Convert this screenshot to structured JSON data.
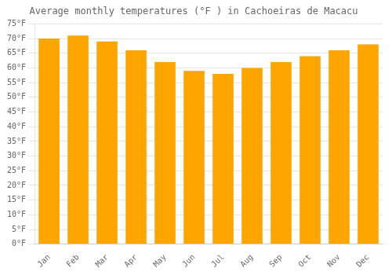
{
  "chart_data": {
    "type": "bar",
    "title": "Average monthly temperatures (°F ) in Cachoeiras de Macacu",
    "categories": [
      "Jan",
      "Feb",
      "Mar",
      "Apr",
      "May",
      "Jun",
      "Jul",
      "Aug",
      "Sep",
      "Oct",
      "Nov",
      "Dec"
    ],
    "values": [
      70,
      71,
      69,
      66,
      62,
      59,
      58,
      60,
      62,
      64,
      66,
      68
    ],
    "color": "#FFA500",
    "ylim": [
      0,
      75
    ],
    "yticks": [
      {
        "value": 0,
        "label": "0°F"
      },
      {
        "value": 5,
        "label": "5°F"
      },
      {
        "value": 10,
        "label": "10°F"
      },
      {
        "value": 15,
        "label": "15°F"
      },
      {
        "value": 20,
        "label": "20°F"
      },
      {
        "value": 25,
        "label": "25°F"
      },
      {
        "value": 30,
        "label": "30°F"
      },
      {
        "value": 35,
        "label": "35°F"
      },
      {
        "value": 40,
        "label": "40°F"
      },
      {
        "value": 45,
        "label": "45°F"
      },
      {
        "value": 50,
        "label": "50°F"
      },
      {
        "value": 55,
        "label": "55°F"
      },
      {
        "value": 60,
        "label": "60°F"
      },
      {
        "value": 65,
        "label": "65°F"
      },
      {
        "value": 70,
        "label": "70°F"
      },
      {
        "value": 75,
        "label": "75°F"
      }
    ],
    "grid": true
  }
}
